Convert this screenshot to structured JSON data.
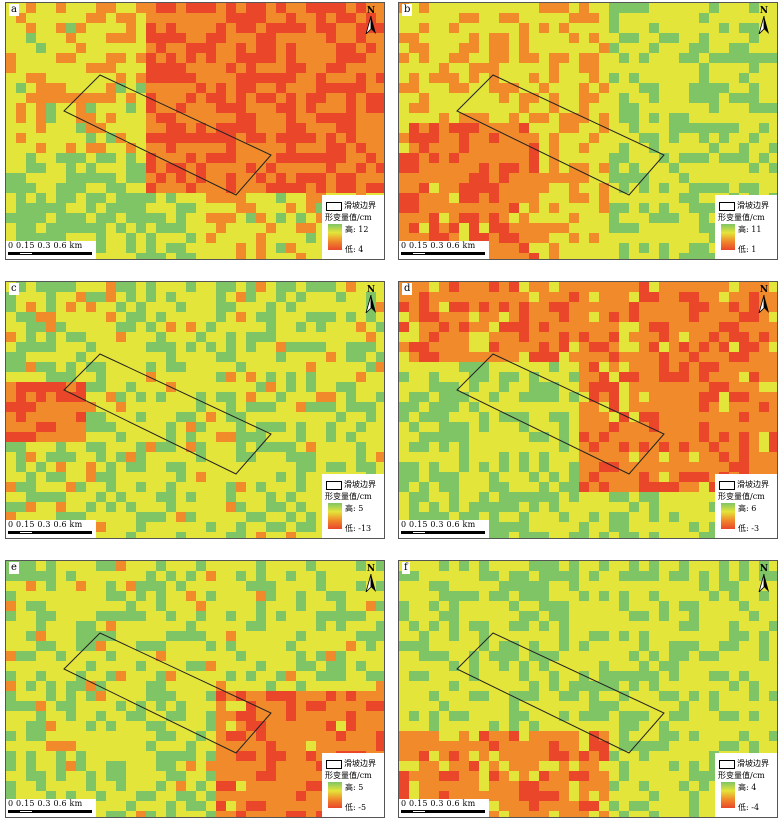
{
  "legend_texts": {
    "boundary": "滑坡边界",
    "title": "形变量值/cm",
    "high_prefix": "高: ",
    "low_prefix": "低: "
  },
  "scale_labels": "0 0.15  0.3      0.6  km",
  "north_label": "N",
  "colors": {
    "high": "#7fc565",
    "mid": "#e4e53a",
    "low": "#e9462a",
    "orange": "#f08a2a"
  },
  "panels": [
    {
      "label": "a",
      "high": "12",
      "low": "4"
    },
    {
      "label": "b",
      "high": "11",
      "low": "1"
    },
    {
      "label": "c",
      "high": "5",
      "low": "-13"
    },
    {
      "label": "d",
      "high": "6",
      "low": "-3"
    },
    {
      "label": "e",
      "high": "5",
      "low": "-5"
    },
    {
      "label": "f",
      "high": "4",
      "low": "-4"
    }
  ]
}
